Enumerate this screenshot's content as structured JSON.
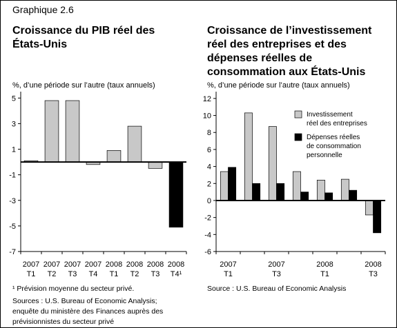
{
  "header": "Graphique 2.6",
  "chart_data": [
    {
      "type": "bar",
      "title": [
        "Croissance du PIB réel des",
        "États-Unis"
      ],
      "ylabel": "%, d’une période sur l’autre (taux annuels)",
      "categories": [
        [
          "2007",
          "T1"
        ],
        [
          "2007",
          "T2"
        ],
        [
          "2007",
          "T3"
        ],
        [
          "2007",
          "T4"
        ],
        [
          "2008",
          "T1"
        ],
        [
          "2008",
          "T2"
        ],
        [
          "2008",
          "T3"
        ],
        [
          "2008",
          "T4¹"
        ]
      ],
      "values": [
        0.1,
        4.8,
        4.8,
        -0.2,
        0.9,
        2.8,
        -0.5,
        -5.1
      ],
      "colors": [
        "#c8c8c8",
        "#c8c8c8",
        "#c8c8c8",
        "#c8c8c8",
        "#c8c8c8",
        "#c8c8c8",
        "#c8c8c8",
        "#000000"
      ],
      "ylim": [
        -7,
        5.5
      ],
      "yticks": [
        5,
        3,
        1,
        -1,
        -3,
        -5,
        -7
      ],
      "notes": [
        "¹ Prévision moyenne du secteur privé.",
        "Sources : U.S. Bureau of Economic Analysis;",
        "enquête du ministère des Finances auprès des",
        "prévisionnistes du secteur privé"
      ]
    },
    {
      "type": "bar",
      "title": [
        "Croissance de l’investissement",
        "réel des entreprises et des",
        "dépenses réelles de",
        "consommation aux États-Unis"
      ],
      "ylabel": "%, d’une période sur l’autre (taux annuels)",
      "categories": [
        [
          "2007",
          "T1"
        ],
        null,
        [
          "2007",
          "T3"
        ],
        null,
        [
          "2008",
          "T1"
        ],
        null,
        [
          "2008",
          "T3"
        ]
      ],
      "series": [
        {
          "name": [
            "Investissement",
            "réel des entreprises"
          ],
          "color": "#c8c8c8",
          "values": [
            3.4,
            10.3,
            8.7,
            3.4,
            2.4,
            2.5,
            -1.7
          ]
        },
        {
          "name": [
            "Dépenses réelles",
            "de consommation",
            "personnelle"
          ],
          "color": "#000000",
          "values": [
            3.9,
            2.0,
            2.0,
            1.0,
            0.9,
            1.2,
            -3.8
          ]
        }
      ],
      "ylim": [
        -6,
        12.8
      ],
      "yticks": [
        12,
        10,
        8,
        6,
        4,
        2,
        0,
        -2,
        -4,
        -6
      ],
      "notes": [
        "Source : U.S. Bureau of Economic Analysis"
      ]
    }
  ]
}
